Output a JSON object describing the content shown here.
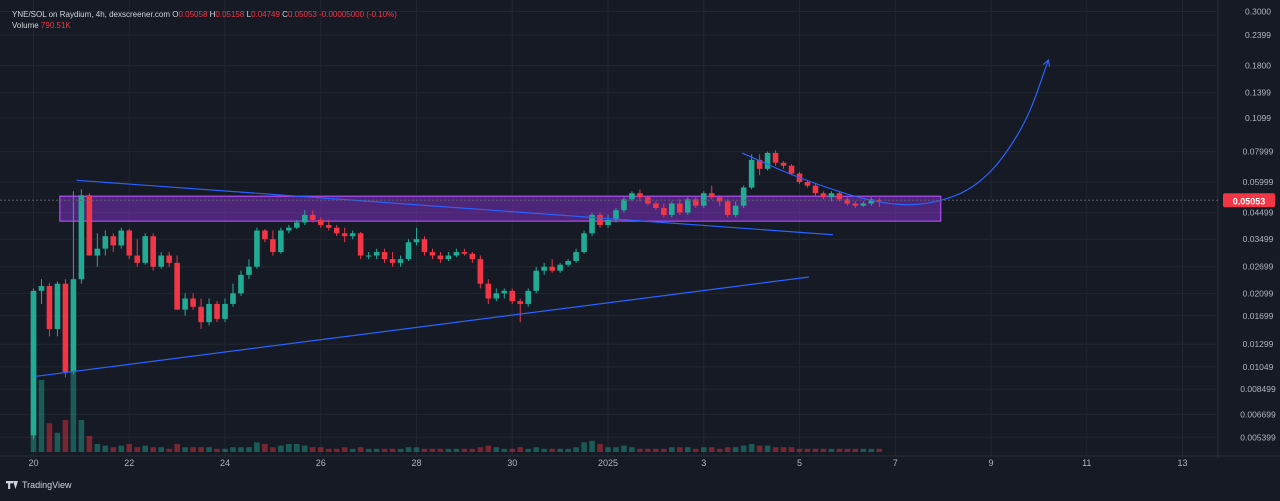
{
  "header": {
    "symbol": "YNE/SOL on Raydium, 4h, dexscreener.com",
    "ohlc": {
      "o_label": "O",
      "o": "0.05058",
      "h_label": "H",
      "h": "0.05158",
      "l_label": "L",
      "l": "0.04749",
      "c_label": "C",
      "c": "0.05053",
      "change": "-0.00005000 (-0.10%)"
    },
    "volume_label": "Volume",
    "volume_value": "790.51K"
  },
  "footer": {
    "brand": "TradingView"
  },
  "colors": {
    "background": "#161a25",
    "up": "#22ab94",
    "down": "#f23645",
    "trendline": "#2962ff",
    "zone_fill": "#7b2fbf",
    "zone_border": "#b04ef2",
    "price_tag": "#f23645"
  },
  "chart_data": {
    "type": "candlestick",
    "y_scale": "log",
    "y_tick_labels": [
      "0.3000",
      "0.2399",
      "0.1800",
      "0.1399",
      "0.1099",
      "0.07999",
      "0.05999",
      "0.04499",
      "0.03499",
      "0.02699",
      "0.02099",
      "0.01699",
      "0.01299",
      "0.01049",
      "0.008499",
      "0.006699",
      "0.005399"
    ],
    "x_tick_labels": [
      {
        "label": "20",
        "day": 0
      },
      {
        "label": "22",
        "day": 2
      },
      {
        "label": "24",
        "day": 4
      },
      {
        "label": "26",
        "day": 6
      },
      {
        "label": "28",
        "day": 8
      },
      {
        "label": "30",
        "day": 10
      },
      {
        "label": "2025",
        "day": 12
      },
      {
        "label": "3",
        "day": 14
      },
      {
        "label": "5",
        "day": 16
      },
      {
        "label": "7",
        "day": 18
      },
      {
        "label": "9",
        "day": 20
      },
      {
        "label": "11",
        "day": 22
      },
      {
        "label": "13",
        "day": 24
      }
    ],
    "ylim": [
      0.0047,
      0.31
    ],
    "xlim_days": [
      -0.7,
      24.7
    ],
    "candle_interval_hours": 4,
    "last_price_label": "0.05053",
    "candles": [
      [
        0.0055,
        0.022,
        0.0053,
        0.0215
      ],
      [
        0.0215,
        0.024,
        0.019,
        0.0225
      ],
      [
        0.0225,
        0.0232,
        0.014,
        0.015
      ],
      [
        0.015,
        0.0235,
        0.014,
        0.023
      ],
      [
        0.023,
        0.024,
        0.0095,
        0.01
      ],
      [
        0.01,
        0.055,
        0.0098,
        0.024
      ],
      [
        0.024,
        0.056,
        0.023,
        0.053
      ],
      [
        0.053,
        0.054,
        0.03,
        0.03
      ],
      [
        0.03,
        0.037,
        0.027,
        0.032
      ],
      [
        0.032,
        0.038,
        0.03,
        0.036
      ],
      [
        0.036,
        0.037,
        0.031,
        0.033
      ],
      [
        0.033,
        0.039,
        0.032,
        0.038
      ],
      [
        0.038,
        0.0385,
        0.029,
        0.03
      ],
      [
        0.03,
        0.035,
        0.027,
        0.028
      ],
      [
        0.028,
        0.037,
        0.0275,
        0.036
      ],
      [
        0.036,
        0.037,
        0.026,
        0.027
      ],
      [
        0.027,
        0.031,
        0.0265,
        0.03
      ],
      [
        0.03,
        0.031,
        0.027,
        0.028
      ],
      [
        0.028,
        0.03,
        0.018,
        0.018
      ],
      [
        0.018,
        0.021,
        0.017,
        0.02
      ],
      [
        0.02,
        0.021,
        0.018,
        0.0185
      ],
      [
        0.0185,
        0.02,
        0.015,
        0.016
      ],
      [
        0.016,
        0.02,
        0.0155,
        0.019
      ],
      [
        0.019,
        0.0195,
        0.016,
        0.0165
      ],
      [
        0.0165,
        0.02,
        0.016,
        0.019
      ],
      [
        0.019,
        0.023,
        0.0185,
        0.021
      ],
      [
        0.021,
        0.026,
        0.0205,
        0.025
      ],
      [
        0.025,
        0.029,
        0.024,
        0.027
      ],
      [
        0.027,
        0.039,
        0.0265,
        0.038
      ],
      [
        0.038,
        0.0385,
        0.034,
        0.035
      ],
      [
        0.035,
        0.038,
        0.03,
        0.031
      ],
      [
        0.031,
        0.039,
        0.0305,
        0.038
      ],
      [
        0.038,
        0.04,
        0.037,
        0.039
      ],
      [
        0.039,
        0.042,
        0.0385,
        0.041
      ],
      [
        0.041,
        0.046,
        0.04,
        0.044
      ],
      [
        0.044,
        0.046,
        0.041,
        0.042
      ],
      [
        0.042,
        0.043,
        0.039,
        0.04
      ],
      [
        0.04,
        0.042,
        0.038,
        0.039
      ],
      [
        0.039,
        0.04,
        0.036,
        0.037
      ],
      [
        0.037,
        0.039,
        0.034,
        0.036
      ],
      [
        0.036,
        0.038,
        0.035,
        0.037
      ],
      [
        0.037,
        0.0375,
        0.029,
        0.03
      ],
      [
        0.03,
        0.031,
        0.029,
        0.03
      ],
      [
        0.03,
        0.032,
        0.029,
        0.031
      ],
      [
        0.031,
        0.032,
        0.028,
        0.029
      ],
      [
        0.029,
        0.031,
        0.027,
        0.028
      ],
      [
        0.028,
        0.03,
        0.027,
        0.029
      ],
      [
        0.029,
        0.035,
        0.0285,
        0.034
      ],
      [
        0.034,
        0.039,
        0.033,
        0.035
      ],
      [
        0.035,
        0.036,
        0.03,
        0.031
      ],
      [
        0.031,
        0.032,
        0.029,
        0.03
      ],
      [
        0.03,
        0.031,
        0.028,
        0.029
      ],
      [
        0.029,
        0.031,
        0.0285,
        0.03
      ],
      [
        0.03,
        0.032,
        0.0295,
        0.031
      ],
      [
        0.031,
        0.032,
        0.03,
        0.0305
      ],
      [
        0.0305,
        0.031,
        0.028,
        0.029
      ],
      [
        0.029,
        0.03,
        0.022,
        0.023
      ],
      [
        0.023,
        0.024,
        0.019,
        0.02
      ],
      [
        0.02,
        0.022,
        0.0195,
        0.021
      ],
      [
        0.021,
        0.022,
        0.02,
        0.0215
      ],
      [
        0.0215,
        0.022,
        0.019,
        0.0195
      ],
      [
        0.0195,
        0.02,
        0.016,
        0.019
      ],
      [
        0.019,
        0.022,
        0.0185,
        0.0215
      ],
      [
        0.0215,
        0.027,
        0.021,
        0.026
      ],
      [
        0.026,
        0.028,
        0.025,
        0.027
      ],
      [
        0.027,
        0.029,
        0.0255,
        0.026
      ],
      [
        0.026,
        0.028,
        0.0255,
        0.0275
      ],
      [
        0.0275,
        0.029,
        0.027,
        0.0285
      ],
      [
        0.0285,
        0.032,
        0.028,
        0.031
      ],
      [
        0.031,
        0.038,
        0.0305,
        0.037
      ],
      [
        0.037,
        0.045,
        0.036,
        0.044
      ],
      [
        0.044,
        0.045,
        0.039,
        0.04
      ],
      [
        0.04,
        0.044,
        0.039,
        0.042
      ],
      [
        0.042,
        0.047,
        0.041,
        0.046
      ],
      [
        0.046,
        0.052,
        0.045,
        0.051
      ],
      [
        0.051,
        0.055,
        0.05,
        0.054
      ],
      [
        0.054,
        0.056,
        0.05,
        0.052
      ],
      [
        0.052,
        0.053,
        0.048,
        0.049
      ],
      [
        0.049,
        0.05,
        0.046,
        0.047
      ],
      [
        0.047,
        0.049,
        0.043,
        0.044
      ],
      [
        0.044,
        0.05,
        0.043,
        0.049
      ],
      [
        0.049,
        0.051,
        0.044,
        0.045
      ],
      [
        0.045,
        0.052,
        0.044,
        0.051
      ],
      [
        0.051,
        0.052,
        0.047,
        0.048
      ],
      [
        0.048,
        0.055,
        0.047,
        0.054
      ],
      [
        0.054,
        0.058,
        0.051,
        0.052
      ],
      [
        0.052,
        0.053,
        0.048,
        0.05
      ],
      [
        0.05,
        0.051,
        0.043,
        0.044
      ],
      [
        0.044,
        0.05,
        0.043,
        0.048
      ],
      [
        0.048,
        0.058,
        0.047,
        0.057
      ],
      [
        0.057,
        0.078,
        0.056,
        0.074
      ],
      [
        0.074,
        0.078,
        0.064,
        0.068
      ],
      [
        0.068,
        0.08,
        0.067,
        0.079
      ],
      [
        0.079,
        0.081,
        0.07,
        0.072
      ],
      [
        0.072,
        0.073,
        0.068,
        0.07
      ],
      [
        0.07,
        0.071,
        0.064,
        0.065
      ],
      [
        0.065,
        0.066,
        0.059,
        0.06
      ],
      [
        0.06,
        0.061,
        0.057,
        0.058
      ],
      [
        0.058,
        0.059,
        0.052,
        0.054
      ],
      [
        0.054,
        0.055,
        0.051,
        0.052
      ],
      [
        0.052,
        0.055,
        0.05,
        0.054
      ],
      [
        0.054,
        0.055,
        0.05,
        0.051
      ],
      [
        0.051,
        0.052,
        0.048,
        0.049
      ],
      [
        0.049,
        0.05,
        0.047,
        0.048
      ],
      [
        0.048,
        0.05,
        0.0475,
        0.049
      ],
      [
        0.049,
        0.052,
        0.048,
        0.051
      ],
      [
        0.0506,
        0.0516,
        0.0475,
        0.0505
      ]
    ],
    "volume_relative": [
      1.0,
      0.45,
      0.18,
      0.12,
      0.2,
      0.55,
      0.2,
      0.1,
      0.05,
      0.04,
      0.03,
      0.04,
      0.05,
      0.03,
      0.04,
      0.03,
      0.03,
      0.02,
      0.05,
      0.03,
      0.03,
      0.03,
      0.03,
      0.02,
      0.02,
      0.03,
      0.03,
      0.03,
      0.06,
      0.05,
      0.03,
      0.04,
      0.05,
      0.05,
      0.04,
      0.03,
      0.03,
      0.02,
      0.02,
      0.03,
      0.02,
      0.03,
      0.02,
      0.02,
      0.02,
      0.02,
      0.02,
      0.03,
      0.03,
      0.02,
      0.02,
      0.02,
      0.02,
      0.02,
      0.02,
      0.02,
      0.03,
      0.04,
      0.03,
      0.02,
      0.02,
      0.03,
      0.02,
      0.03,
      0.02,
      0.02,
      0.02,
      0.02,
      0.03,
      0.06,
      0.07,
      0.05,
      0.03,
      0.03,
      0.04,
      0.03,
      0.02,
      0.02,
      0.02,
      0.02,
      0.03,
      0.03,
      0.03,
      0.02,
      0.03,
      0.03,
      0.02,
      0.03,
      0.03,
      0.04,
      0.05,
      0.04,
      0.04,
      0.03,
      0.03,
      0.03,
      0.02,
      0.02,
      0.02,
      0.02,
      0.02,
      0.02,
      0.02,
      0.02,
      0.02,
      0.02,
      0.02
    ],
    "annotations": {
      "zone": {
        "day_from": 0.55,
        "day_to": 18.95,
        "price_low": 0.0415,
        "price_high": 0.0525
      },
      "descending_line": {
        "from": {
          "day": 0.9,
          "price": 0.061
        },
        "to": {
          "day": 16.7,
          "price": 0.0365
        }
      },
      "ascending_line": {
        "from": {
          "day": 0.05,
          "price": 0.0096
        },
        "to": {
          "day": 16.2,
          "price": 0.0245
        }
      },
      "curve": [
        {
          "day": 14.8,
          "price": 0.079
        },
        {
          "day": 16.0,
          "price": 0.062
        },
        {
          "day": 17.6,
          "price": 0.049
        },
        {
          "day": 18.7,
          "price": 0.048
        },
        {
          "day": 19.8,
          "price": 0.058
        },
        {
          "day": 20.7,
          "price": 0.1
        },
        {
          "day": 21.2,
          "price": 0.19
        }
      ]
    }
  }
}
